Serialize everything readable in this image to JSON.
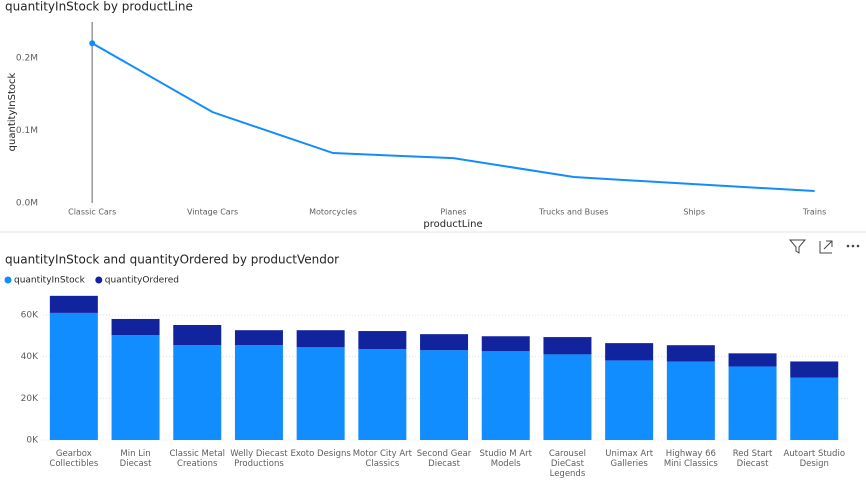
{
  "chart_data": [
    {
      "type": "line",
      "title": "quantityInStock by productLine",
      "x_label": "productLine",
      "y_label": "quantityInStock",
      "categories": [
        "Classic Cars",
        "Vintage Cars",
        "Motorcycles",
        "Planes",
        "Trucks and Buses",
        "Ships",
        "Trains"
      ],
      "values": [
        220700,
        125500,
        69000,
        62000,
        35900,
        26000,
        16500
      ],
      "color": "#118DFF",
      "ylim": [
        0,
        250000
      ],
      "yticks": [
        {
          "value": 0,
          "label": "0.0M"
        },
        {
          "value": 100000,
          "label": "0.1M"
        },
        {
          "value": 200000,
          "label": "0.2M"
        }
      ]
    },
    {
      "type": "stacked_bar",
      "title": "quantityInStock and quantityOrdered by productVendor",
      "categories": [
        "Gearbox Collectibles",
        "Min Lin Diecast",
        "Classic Metal Creations",
        "Welly Diecast Productions",
        "Exoto Designs",
        "Motor City Art Classics",
        "Second Gear Diecast",
        "Studio M Art Models",
        "Carousel DieCast Legends",
        "Unimax Art Galleries",
        "Highway 66 Mini Classics",
        "Red Start Diecast",
        "Autoart Studio Design"
      ],
      "series": [
        {
          "name": "quantityInStock",
          "color": "#118DFF",
          "values": [
            61000,
            50300,
            45500,
            45500,
            44500,
            43600,
            43100,
            42600,
            41100,
            38200,
            37700,
            35300,
            30000
          ]
        },
        {
          "name": "quantityOrdered",
          "color": "#12239E",
          "values": [
            8200,
            7800,
            9700,
            7200,
            8200,
            8700,
            7700,
            7200,
            8300,
            8300,
            7800,
            6300,
            7700
          ]
        }
      ],
      "ylim": [
        0,
        72000
      ],
      "grid": true,
      "yticks": [
        {
          "value": 0,
          "label": "0K"
        },
        {
          "value": 20000,
          "label": "20K"
        },
        {
          "value": 40000,
          "label": "40K"
        },
        {
          "value": 60000,
          "label": "60K"
        }
      ]
    }
  ]
}
